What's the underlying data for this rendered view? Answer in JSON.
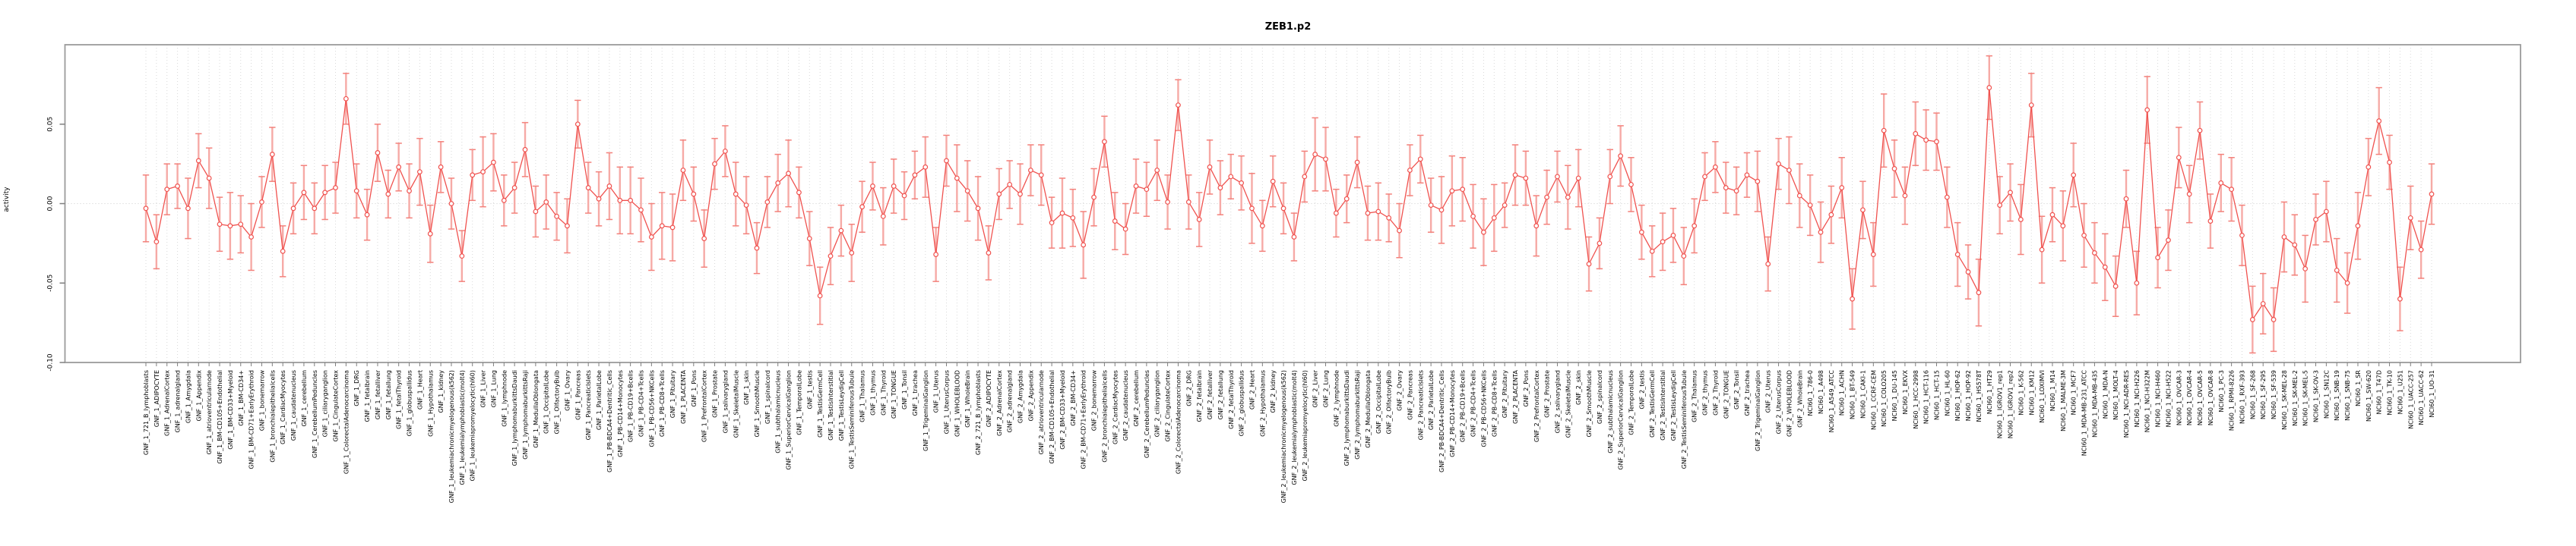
{
  "chart_data": {
    "type": "line",
    "title": "ZEB1.p2",
    "ylabel": "activity",
    "xlabel": "",
    "ylim": [
      -0.1,
      0.1
    ],
    "y_ticks": [
      0.05,
      0.0,
      -0.05,
      -0.1
    ],
    "y_tick_labels": [
      "0.05",
      "0.00",
      "-0.05",
      "-0.10"
    ],
    "legend": "none",
    "grid": "dotted vertical line at every sample; dotted horizontal line at zero",
    "marker": "open-circle with error bars",
    "samples_format": [
      "label",
      "value",
      "error"
    ],
    "samples": [
      [
        "GNF_1_721_B_lymphoblasts",
        -0.003,
        0.021
      ],
      [
        "GNF_1_ADIPOCYTE",
        -0.024,
        0.017
      ],
      [
        "GNF_1_AdrenalCortex",
        0.009,
        0.016
      ],
      [
        "GNF_1_adrenalgland",
        0.011,
        0.014
      ],
      [
        "GNF_1_Amygdala",
        -0.003,
        0.019
      ],
      [
        "GNF_1_Appendix",
        0.027,
        0.017
      ],
      [
        "GNF_1_atrioventricularnode",
        0.016,
        0.019
      ],
      [
        "GNF_1_BM-CD105+Endothelial",
        -0.013,
        0.017
      ],
      [
        "GNF_1_BM-CD33+Myeloid",
        -0.014,
        0.021
      ],
      [
        "GNF_1_BM-CD34+",
        -0.013,
        0.018
      ],
      [
        "GNF_1_BM-CD71+EarlyErythroid",
        -0.021,
        0.021
      ],
      [
        "GNF_1_bonemarrow",
        0.001,
        0.016
      ],
      [
        "GNF_1_bronchialepithelialcells",
        0.031,
        0.017
      ],
      [
        "GNF_1_CardiacMyocytes",
        -0.03,
        0.016
      ],
      [
        "GNF_1_caudatenucleus",
        -0.003,
        0.016
      ],
      [
        "GNF_1_cerebellum",
        0.007,
        0.017
      ],
      [
        "GNF_1_CerebellumPeduncles",
        -0.003,
        0.016
      ],
      [
        "GNF_1_ciliaryganglion",
        0.007,
        0.017
      ],
      [
        "GNF_1_CingulateCortex",
        0.01,
        0.016
      ],
      [
        "GNF_1_ColorectalAdenocarcinoma",
        0.066,
        0.016
      ],
      [
        "GNF_1_DRG",
        0.008,
        0.017
      ],
      [
        "GNF_1_fetalbrain",
        -0.007,
        0.016
      ],
      [
        "GNF_1_fetalliver",
        0.032,
        0.018
      ],
      [
        "GNF_1_fetallung",
        0.006,
        0.015
      ],
      [
        "GNF_1_fetalThyroid",
        0.023,
        0.015
      ],
      [
        "GNF_1_globuspallidus",
        0.008,
        0.017
      ],
      [
        "GNF_1_Heart",
        0.02,
        0.021
      ],
      [
        "GNF_1_Hypothalamus",
        -0.019,
        0.018
      ],
      [
        "GNF_1_kidney",
        0.023,
        0.016
      ],
      [
        "GNF_1_leukemiachronicmyelogenous(k562)",
        0.0,
        0.016
      ],
      [
        "GNF_1_leukemialymphoblastic(molt4)",
        -0.033,
        0.016
      ],
      [
        "GNF_1_leukemiapromyelocytic(hl60)",
        0.018,
        0.016
      ],
      [
        "GNF_1_Liver",
        0.02,
        0.022
      ],
      [
        "GNF_1_Lung",
        0.026,
        0.018
      ],
      [
        "GNF_1_lymphnode",
        0.002,
        0.016
      ],
      [
        "GNF_1_lymphomaburkittsDaudi",
        0.01,
        0.016
      ],
      [
        "GNF_1_lymphomaburkittsRaji",
        0.034,
        0.017
      ],
      [
        "GNF_1_MedullaOblongata",
        -0.005,
        0.016
      ],
      [
        "GNF_1_OccipitalLobe",
        0.001,
        0.017
      ],
      [
        "GNF_1_OlfactoryBulb",
        -0.008,
        0.015
      ],
      [
        "GNF_1_Ovary",
        -0.014,
        0.017
      ],
      [
        "GNF_1_Pancreas",
        0.05,
        0.015
      ],
      [
        "GNF_1_PancreaticIslets",
        0.01,
        0.016
      ],
      [
        "GNF_1_ParietalLobe",
        0.003,
        0.017
      ],
      [
        "GNF_1_PB-BDCA4+Dentritic_Cells",
        0.011,
        0.021
      ],
      [
        "GNF_1_PB-CD14+Monocytes",
        0.002,
        0.021
      ],
      [
        "GNF_1_PB-CD19+Bcells",
        0.002,
        0.021
      ],
      [
        "GNF_1_PB-CD4+Tcells",
        -0.004,
        0.02
      ],
      [
        "GNF_1_PB-CD56+NKCells",
        -0.021,
        0.021
      ],
      [
        "GNF_1_PB-CD8+Tcells",
        -0.014,
        0.021
      ],
      [
        "GNF_1_Pituitary",
        -0.015,
        0.021
      ],
      [
        "GNF_1_PLACENTA",
        0.021,
        0.019
      ],
      [
        "GNF_1_Pons",
        0.006,
        0.017
      ],
      [
        "GNF_1_PrefrontalCortex",
        -0.022,
        0.018
      ],
      [
        "GNF_1_Prostate",
        0.025,
        0.016
      ],
      [
        "GNF_1_salivarygland",
        0.033,
        0.016
      ],
      [
        "GNF_1_SkeletalMuscle",
        0.006,
        0.02
      ],
      [
        "GNF_1_skin",
        -0.001,
        0.018
      ],
      [
        "GNF_1_SmoothMuscle",
        -0.028,
        0.016
      ],
      [
        "GNF_1_spinalcord",
        0.001,
        0.016
      ],
      [
        "GNF_1_subthalamicnucleus",
        0.013,
        0.018
      ],
      [
        "GNF_1_SuperiorCervicalGanglion",
        0.019,
        0.021
      ],
      [
        "GNF_1_TemporalLobe",
        0.007,
        0.016
      ],
      [
        "GNF_1_testis",
        -0.022,
        0.017
      ],
      [
        "GNF_1_TestisGermCell",
        -0.058,
        0.018
      ],
      [
        "GNF_1_TestisInterstitial",
        -0.033,
        0.018
      ],
      [
        "GNF_1_TestisLeydigCell",
        -0.017,
        0.016
      ],
      [
        "GNF_1_TestisSeminiferousTubule",
        -0.031,
        0.018
      ],
      [
        "GNF_1_Thalamus",
        -0.002,
        0.016
      ],
      [
        "GNF_1_thymus",
        0.011,
        0.015
      ],
      [
        "GNF_1_Thyroid",
        -0.008,
        0.018
      ],
      [
        "GNF_1_TONGUE",
        0.011,
        0.017
      ],
      [
        "GNF_1_Tonsil",
        0.005,
        0.015
      ],
      [
        "GNF_1_trachea",
        0.018,
        0.015
      ],
      [
        "GNF_1_TrigeminalGanglion",
        0.023,
        0.019
      ],
      [
        "GNF_1_Uterus",
        -0.032,
        0.017
      ],
      [
        "GNF_1_UterusCorpus",
        0.027,
        0.016
      ],
      [
        "GNF_1_WHOLEBLOOD",
        0.016,
        0.021
      ],
      [
        "GNF_1_WholeBrain",
        0.008,
        0.019
      ],
      [
        "GNF_2_721_B_lymphoblasts",
        -0.003,
        0.02
      ],
      [
        "GNF_2_ADIPOCYTE",
        -0.031,
        0.017
      ],
      [
        "GNF_2_AdrenalCortex",
        0.006,
        0.016
      ],
      [
        "GNF_2_adrenalgland",
        0.012,
        0.015
      ],
      [
        "GNF_2_Amygdala",
        0.006,
        0.019
      ],
      [
        "GNF_2_Appendix",
        0.021,
        0.016
      ],
      [
        "GNF_2_atrioventricularnode",
        0.018,
        0.019
      ],
      [
        "GNF_2_BM-CD105+Endothelial",
        -0.012,
        0.016
      ],
      [
        "GNF_2_BM-CD33+Myeloid",
        -0.006,
        0.022
      ],
      [
        "GNF_2_BM-CD34+",
        -0.009,
        0.018
      ],
      [
        "GNF_2_BM-CD71+EarlyErythroid",
        -0.026,
        0.021
      ],
      [
        "GNF_2_bonemarrow",
        0.004,
        0.018
      ],
      [
        "GNF_2_bronchialepithelialcells",
        0.039,
        0.016
      ],
      [
        "GNF_2_CardiacMyocytes",
        -0.011,
        0.018
      ],
      [
        "GNF_2_caudatenucleus",
        -0.016,
        0.016
      ],
      [
        "GNF_2_cerebellum",
        0.011,
        0.017
      ],
      [
        "GNF_2_CerebellumPeduncles",
        0.009,
        0.017
      ],
      [
        "GNF_2_ciliaryganglion",
        0.021,
        0.019
      ],
      [
        "GNF_2_CingulateCortex",
        0.001,
        0.017
      ],
      [
        "GNF_2_ColorectalAdenocarcinoma",
        0.062,
        0.016
      ],
      [
        "GNF_2_DRG",
        0.001,
        0.017
      ],
      [
        "GNF_2_fetalbrain",
        -0.01,
        0.017
      ],
      [
        "GNF_2_fetalliver",
        0.023,
        0.017
      ],
      [
        "GNF_2_fetallung",
        0.01,
        0.017
      ],
      [
        "GNF_2_fetalThyroid",
        0.017,
        0.014
      ],
      [
        "GNF_2_globuspallidus",
        0.013,
        0.017
      ],
      [
        "GNF_2_Heart",
        -0.003,
        0.022
      ],
      [
        "GNF_2_Hypothalamus",
        -0.014,
        0.016
      ],
      [
        "GNF_2_kidney",
        0.014,
        0.016
      ],
      [
        "GNF_2_leukemiachronicmyelogenous(k562)",
        -0.003,
        0.016
      ],
      [
        "GNF_2_leukemialymphoblastic(molt4)",
        -0.021,
        0.015
      ],
      [
        "GNF_2_leukemiapromyelocytic(hl60)",
        0.017,
        0.016
      ],
      [
        "GNF_2_Liver",
        0.031,
        0.023
      ],
      [
        "GNF_2_Lung",
        0.028,
        0.02
      ],
      [
        "GNF_2_lymphnode",
        -0.006,
        0.015
      ],
      [
        "GNF_2_lymphomaburkittsDaudi",
        0.003,
        0.015
      ],
      [
        "GNF_2_lymphomaburkittsRaji",
        0.026,
        0.016
      ],
      [
        "GNF_2_MedullaOblongata",
        -0.006,
        0.017
      ],
      [
        "GNF_2_OccipitalLobe",
        -0.005,
        0.018
      ],
      [
        "GNF_2_OlfactoryBulb",
        -0.009,
        0.015
      ],
      [
        "GNF_2_Ovary",
        -0.017,
        0.017
      ],
      [
        "GNF_2_Pancreas",
        0.021,
        0.016
      ],
      [
        "GNF_2_PancreaticIslets",
        0.028,
        0.015
      ],
      [
        "GNF_2_ParietalLobe",
        -0.001,
        0.017
      ],
      [
        "GNF_2_PB-BDCA4+Dentritic_Cells",
        -0.004,
        0.021
      ],
      [
        "GNF_2_PB-CD14+Monocytes",
        0.008,
        0.022
      ],
      [
        "GNF_2_PB-CD19+Bcells",
        0.009,
        0.02
      ],
      [
        "GNF_2_PB-CD4+Tcells",
        -0.008,
        0.02
      ],
      [
        "GNF_2_PB-CD56+NKCells",
        -0.018,
        0.021
      ],
      [
        "GNF_2_PB-CD8+Tcells",
        -0.009,
        0.021
      ],
      [
        "GNF_2_Pituitary",
        -0.001,
        0.014
      ],
      [
        "GNF_2_PLACENTA",
        0.018,
        0.019
      ],
      [
        "GNF_2_Pons",
        0.016,
        0.017
      ],
      [
        "GNF_2_PrefrontalCortex",
        -0.014,
        0.019
      ],
      [
        "GNF_2_Prostate",
        0.004,
        0.017
      ],
      [
        "GNF_2_salivarygland",
        0.017,
        0.016
      ],
      [
        "GNF_2_SkeletalMuscle",
        0.004,
        0.02
      ],
      [
        "GNF_2_skin",
        0.016,
        0.018
      ],
      [
        "GNF_2_SmoothMuscle",
        -0.038,
        0.017
      ],
      [
        "GNF_2_spinalcord",
        -0.025,
        0.016
      ],
      [
        "GNF_2_subthalamicnucleus",
        0.017,
        0.017
      ],
      [
        "GNF_2_SuperiorCervicalGanglion",
        0.03,
        0.019
      ],
      [
        "GNF_2_TemporalLobe",
        0.012,
        0.017
      ],
      [
        "GNF_2_testis",
        -0.018,
        0.017
      ],
      [
        "GNF_2_TestisGermCell",
        -0.03,
        0.016
      ],
      [
        "GNF_2_TestisInterstitial",
        -0.024,
        0.018
      ],
      [
        "GNF_2_TestisLeydigCell",
        -0.02,
        0.017
      ],
      [
        "GNF_2_TestisSeminiferousTubule",
        -0.033,
        0.018
      ],
      [
        "GNF_2_Thalamus",
        -0.014,
        0.017
      ],
      [
        "GNF_2_thymus",
        0.017,
        0.015
      ],
      [
        "GNF_2_Thyroid",
        0.023,
        0.016
      ],
      [
        "GNF_2_TONGUE",
        0.01,
        0.016
      ],
      [
        "GNF_2_Tonsil",
        0.008,
        0.015
      ],
      [
        "GNF_2_trachea",
        0.018,
        0.014
      ],
      [
        "GNF_2_TrigeminalGanglion",
        0.014,
        0.019
      ],
      [
        "GNF_2_Uterus",
        -0.038,
        0.017
      ],
      [
        "GNF_2_UterusCorpus",
        0.025,
        0.016
      ],
      [
        "GNF_2_WHOLEBLOOD",
        0.021,
        0.021
      ],
      [
        "GNF_2_WholeBrain",
        0.005,
        0.02
      ],
      [
        "NCI60_1_786-0",
        -0.001,
        0.019
      ],
      [
        "NCI60_1_A498",
        -0.018,
        0.019
      ],
      [
        "NCI60_1_A549_ATCC",
        -0.007,
        0.018
      ],
      [
        "NCI60_1_ACHN",
        0.01,
        0.019
      ],
      [
        "NCI60_1_BT-549",
        -0.06,
        0.019
      ],
      [
        "NCI60_1_CAKI-1",
        -0.004,
        0.018
      ],
      [
        "NCI60_1_CCRF-CEM",
        -0.032,
        0.02
      ],
      [
        "NCI60_1_COLO205",
        0.046,
        0.023
      ],
      [
        "NCI60_1_DU-145",
        0.022,
        0.018
      ],
      [
        "NCI60_1_EKVX",
        0.005,
        0.018
      ],
      [
        "NCI60_1_HCC-2998",
        0.044,
        0.02
      ],
      [
        "NCI60_1_HCT-116",
        0.04,
        0.019
      ],
      [
        "NCI60_1_HCT-15",
        0.039,
        0.018
      ],
      [
        "NCI60_1_HL-60",
        0.004,
        0.019
      ],
      [
        "NCI60_1_HOP-62",
        -0.032,
        0.02
      ],
      [
        "NCI60_1_HOP-92",
        -0.043,
        0.017
      ],
      [
        "NCI60_1_HS578T",
        -0.056,
        0.021
      ],
      [
        "NCI60_1_HT29",
        0.073,
        0.02
      ],
      [
        "NCI60_1_IGROV1_rep1",
        -0.001,
        0.018
      ],
      [
        "NCI60_1_IGROV1_rep2",
        0.007,
        0.018
      ],
      [
        "NCI60_1_K-562",
        -0.01,
        0.022
      ],
      [
        "NCI60_1_KM12",
        0.062,
        0.02
      ],
      [
        "NCI60_1_LOXIMVI",
        -0.029,
        0.021
      ],
      [
        "NCI60_1_M14",
        -0.007,
        0.017
      ],
      [
        "NCI60_1_MALME-3M",
        -0.014,
        0.022
      ],
      [
        "NCI60_1_MCF7",
        0.018,
        0.02
      ],
      [
        "NCI60_1_MDA-MB-231_ATCC",
        -0.02,
        0.02
      ],
      [
        "NCI60_1_MDA-MB-435",
        -0.031,
        0.019
      ],
      [
        "NCI60_1_MDA-N",
        -0.04,
        0.021
      ],
      [
        "NCI60_1_MOLT-4",
        -0.052,
        0.019
      ],
      [
        "NCI60_1_NCI-ADR-RES",
        0.003,
        0.018
      ],
      [
        "NCI60_1_NCI-H226",
        -0.05,
        0.02
      ],
      [
        "NCI60_1_NCI-H322M",
        0.059,
        0.021
      ],
      [
        "NCI60_1_NCI-H460",
        -0.034,
        0.019
      ],
      [
        "NCI60_1_NCI-H522",
        -0.023,
        0.019
      ],
      [
        "NCI60_1_OVCAR-3",
        0.029,
        0.019
      ],
      [
        "NCI60_1_OVCAR-4",
        0.006,
        0.018
      ],
      [
        "NCI60_1_OVCAR-5",
        0.046,
        0.018
      ],
      [
        "NCI60_1_OVCAR-8",
        -0.011,
        0.017
      ],
      [
        "NCI60_1_PC-3",
        0.013,
        0.018
      ],
      [
        "NCI60_1_RPMI-8226",
        0.009,
        0.02
      ],
      [
        "NCI60_1_RXF-393",
        -0.02,
        0.019
      ],
      [
        "NCI60_1_SF-268",
        -0.073,
        0.021
      ],
      [
        "NCI60_1_SF-295",
        -0.063,
        0.019
      ],
      [
        "NCI60_1_SF-539",
        -0.073,
        0.02
      ],
      [
        "NCI60_1_SK-MEL-28",
        -0.021,
        0.022
      ],
      [
        "NCI60_1_SK-MEL-2",
        -0.026,
        0.019
      ],
      [
        "NCI60_1_SK-MEL-5",
        -0.041,
        0.021
      ],
      [
        "NCI60_1_SK-OV-3",
        -0.01,
        0.016
      ],
      [
        "NCI60_1_SN12C",
        -0.005,
        0.019
      ],
      [
        "NCI60_1_SNB-19",
        -0.042,
        0.02
      ],
      [
        "NCI60_1_SNB-75",
        -0.05,
        0.019
      ],
      [
        "NCI60_1_SR",
        -0.014,
        0.021
      ],
      [
        "NCI60_1_SW-620",
        0.023,
        0.018
      ],
      [
        "NCI60_1_T47D",
        0.052,
        0.021
      ],
      [
        "NCI60_1_TK-10",
        0.026,
        0.017
      ],
      [
        "NCI60_1_U251",
        -0.06,
        0.02
      ],
      [
        "NCI60_1_UACC-257",
        -0.009,
        0.02
      ],
      [
        "NCI60_1_UACC-62",
        -0.029,
        0.018
      ],
      [
        "NCI60_1_UO-31",
        0.006,
        0.019
      ]
    ]
  },
  "colors": {
    "line": "#f0524f",
    "point_fill": "#ffffff",
    "error_stem": "#f6aaa6",
    "error_cap": "#f3817b",
    "grid": "#d9d9d9",
    "zero_line": "#cccccc",
    "frame": "#9b9b9b",
    "tick": "#7f7f7f",
    "text": "#000000"
  }
}
